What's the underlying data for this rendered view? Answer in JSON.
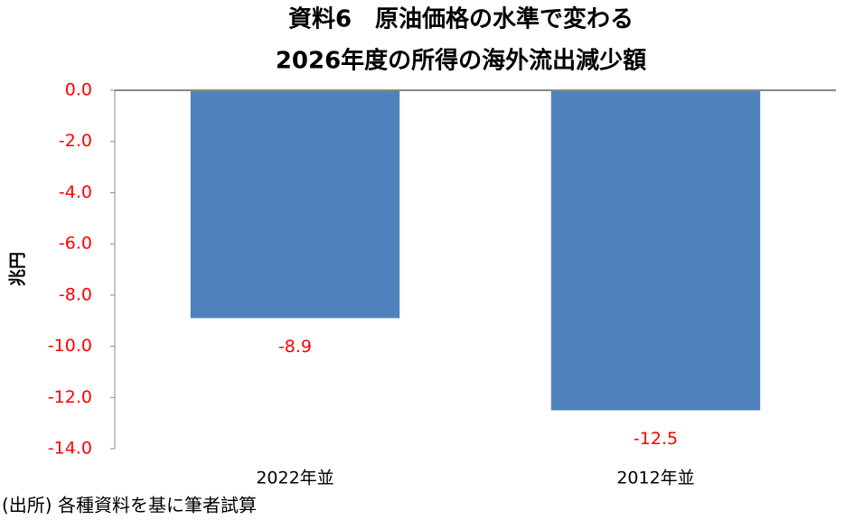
{
  "chart_data": {
    "type": "bar",
    "title": [
      "資料6　原油価格の水準で変わる",
      "2026年度の所得の海外流出減少額"
    ],
    "y_label": "兆円",
    "categories": [
      "2022年並",
      "2012年並"
    ],
    "values": [
      -8.9,
      -12.5
    ],
    "color": "#4f81bd",
    "label_color": "#ff0000",
    "ylim": [
      -14,
      0
    ],
    "yticks": [
      {
        "value": 0,
        "label": "0.0"
      },
      {
        "value": -2,
        "label": "-2.0"
      },
      {
        "value": -4,
        "label": "-4.0"
      },
      {
        "value": -6,
        "label": "-6.0"
      },
      {
        "value": -8,
        "label": "-8.0"
      },
      {
        "value": -10,
        "label": "-10.0"
      },
      {
        "value": -12,
        "label": "-12.0"
      },
      {
        "value": -14,
        "label": "-14.0"
      }
    ],
    "grid": false,
    "source": "(出所) 各種資料を基に筆者試算"
  }
}
